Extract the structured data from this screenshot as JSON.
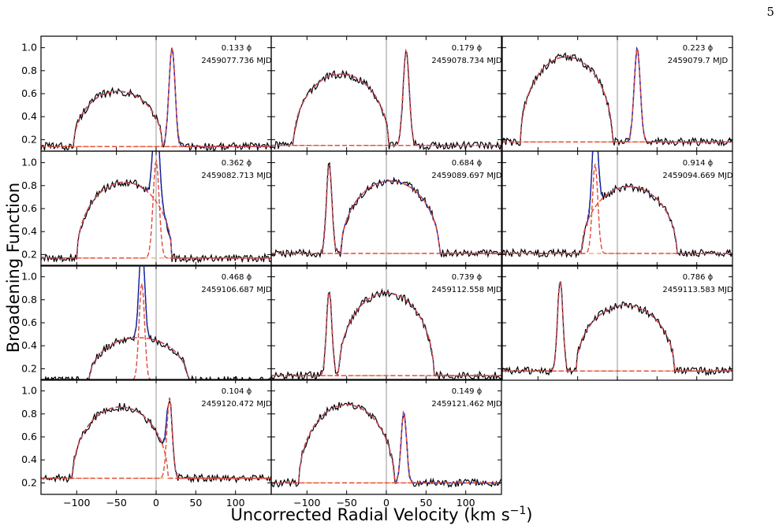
{
  "page_number": "5",
  "chart_data": {
    "type": "line",
    "ylabel": "Broadening Function",
    "xlabel": "Uncorrected Radial Velocity (km s",
    "xlabel_sup": "−1",
    "xlabel_close": ")",
    "xlim": [
      -145,
      145
    ],
    "ylim": [
      0.1,
      1.1
    ],
    "xticks": [
      -100,
      -50,
      0,
      50,
      100
    ],
    "yticks": [
      0.2,
      0.4,
      0.6,
      0.8,
      1.0
    ],
    "grid": false,
    "colors": {
      "observed": "#000000",
      "fit_total": "#1f2fd6",
      "fit_component": "#e04a3a",
      "baseline": "#f6b07e",
      "zero_line": "#a8a8a8"
    },
    "panels": [
      {
        "phase": "0.133 ϕ",
        "mjd": "2459077.736 MJD",
        "base": 0.14,
        "comps": [
          {
            "center": -48,
            "height": 0.48,
            "width": 56,
            "shape": "rot"
          },
          {
            "center": 20,
            "height": 0.86,
            "width": 9,
            "shape": "gauss"
          }
        ]
      },
      {
        "phase": "0.179 ϕ",
        "mjd": "2459078.734 MJD",
        "base": 0.15,
        "comps": [
          {
            "center": -57,
            "height": 0.62,
            "width": 60,
            "shape": "rot"
          },
          {
            "center": 25,
            "height": 0.83,
            "width": 9,
            "shape": "gauss"
          }
        ]
      },
      {
        "phase": "0.223 ϕ",
        "mjd": "2459079.7 MJD",
        "base": 0.18,
        "comps": [
          {
            "center": -64,
            "height": 0.74,
            "width": 58,
            "shape": "rot"
          },
          {
            "center": 25,
            "height": 0.82,
            "width": 9,
            "shape": "gauss"
          }
        ]
      },
      {
        "phase": "0.362 ϕ",
        "mjd": "2459082.713 MJD",
        "base": 0.17,
        "comps": [
          {
            "center": -40,
            "height": 0.66,
            "width": 60,
            "shape": "rot"
          },
          {
            "center": 0,
            "height": 0.85,
            "width": 9,
            "shape": "gauss"
          }
        ]
      },
      {
        "phase": "0.684 ϕ",
        "mjd": "2459089.697 MJD",
        "base": 0.21,
        "comps": [
          {
            "center": -72,
            "height": 0.78,
            "width": 8,
            "shape": "gauss"
          },
          {
            "center": 5,
            "height": 0.63,
            "width": 62,
            "shape": "rot"
          }
        ]
      },
      {
        "phase": "0.914 ϕ",
        "mjd": "2459094.669 MJD",
        "base": 0.21,
        "comps": [
          {
            "center": -28,
            "height": 0.78,
            "width": 8,
            "shape": "gauss"
          },
          {
            "center": 15,
            "height": 0.58,
            "width": 60,
            "shape": "rot"
          }
        ]
      },
      {
        "phase": "0.468 ϕ",
        "mjd": "2459106.687 MJD",
        "base": 0.1,
        "comps": [
          {
            "center": -18,
            "height": 0.85,
            "width": 8,
            "shape": "gauss"
          },
          {
            "center": -22,
            "height": 0.37,
            "width": 62,
            "shape": "rot"
          }
        ]
      },
      {
        "phase": "0.739 ϕ",
        "mjd": "2459112.558 MJD",
        "base": 0.14,
        "comps": [
          {
            "center": -72,
            "height": 0.73,
            "width": 8,
            "shape": "gauss"
          },
          {
            "center": 0,
            "height": 0.72,
            "width": 60,
            "shape": "rot"
          }
        ]
      },
      {
        "phase": "0.786 ϕ",
        "mjd": "2459113.583 MJD",
        "base": 0.18,
        "comps": [
          {
            "center": -72,
            "height": 0.79,
            "width": 8,
            "shape": "gauss"
          },
          {
            "center": 10,
            "height": 0.57,
            "width": 62,
            "shape": "rot"
          }
        ]
      },
      {
        "phase": "0.104 ϕ",
        "mjd": "2459120.472 MJD",
        "base": 0.24,
        "comps": [
          {
            "center": -45,
            "height": 0.62,
            "width": 60,
            "shape": "rot"
          },
          {
            "center": 17,
            "height": 0.7,
            "width": 8,
            "shape": "gauss"
          }
        ]
      },
      {
        "phase": "0.149 ϕ",
        "mjd": "2459121.462 MJD",
        "base": 0.2,
        "comps": [
          {
            "center": -50,
            "height": 0.68,
            "width": 60,
            "shape": "rot"
          },
          {
            "center": 22,
            "height": 0.62,
            "width": 8,
            "shape": "gauss"
          }
        ]
      }
    ]
  }
}
